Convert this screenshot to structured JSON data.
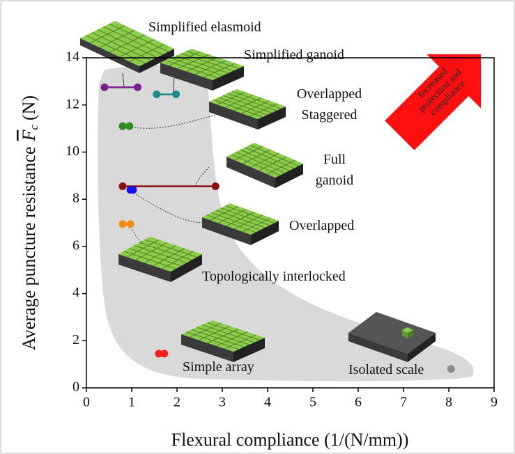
{
  "chart_data": {
    "type": "scatter",
    "x_label": "Flexural compliance (1/(N/mm))",
    "y_label": "Average puncture resistance",
    "y_label_symbol": "F",
    "y_label_subscript": "c",
    "y_label_unit": "(N)",
    "xlim": [
      0,
      9
    ],
    "xticks": [
      0,
      1,
      2,
      3,
      4,
      5,
      6,
      7,
      8,
      9
    ],
    "ylim": [
      0,
      14
    ],
    "yticks": [
      0,
      2,
      4,
      6,
      8,
      10,
      12,
      14
    ],
    "series": [
      {
        "name": "Simplified elasmoid",
        "color": "#7b1f8c",
        "x": [
          0.4,
          1.13
        ],
        "values": [
          12.75,
          12.75
        ]
      },
      {
        "name": "Simplified ganoid",
        "color": "#1d8a8e",
        "x": [
          1.55,
          1.98
        ],
        "values": [
          12.45,
          12.45
        ]
      },
      {
        "name": "Overlapped Staggered",
        "color": "#2e8b22",
        "x": [
          0.8,
          0.95
        ],
        "values": [
          11.1,
          11.1
        ]
      },
      {
        "name": "Full ganoid",
        "color": "#8b0f0f",
        "x": [
          0.8,
          2.85
        ],
        "values": [
          8.55,
          8.55
        ]
      },
      {
        "name": "Overlapped",
        "color": "#1414e6",
        "x": [
          0.97,
          1.03
        ],
        "values": [
          8.4,
          8.4
        ]
      },
      {
        "name": "Topologically interlocked",
        "color": "#f28c18",
        "x": [
          0.8,
          0.97
        ],
        "values": [
          6.95,
          6.95
        ]
      },
      {
        "name": "Simple array",
        "color": "#f02020",
        "x": [
          1.6,
          1.72
        ],
        "values": [
          1.45,
          1.45
        ]
      },
      {
        "name": "Isolated scale",
        "color": "#8c8c8c",
        "x": [
          8.05
        ],
        "values": [
          0.8
        ]
      }
    ],
    "annotation": "Increased protection and compliance"
  }
}
